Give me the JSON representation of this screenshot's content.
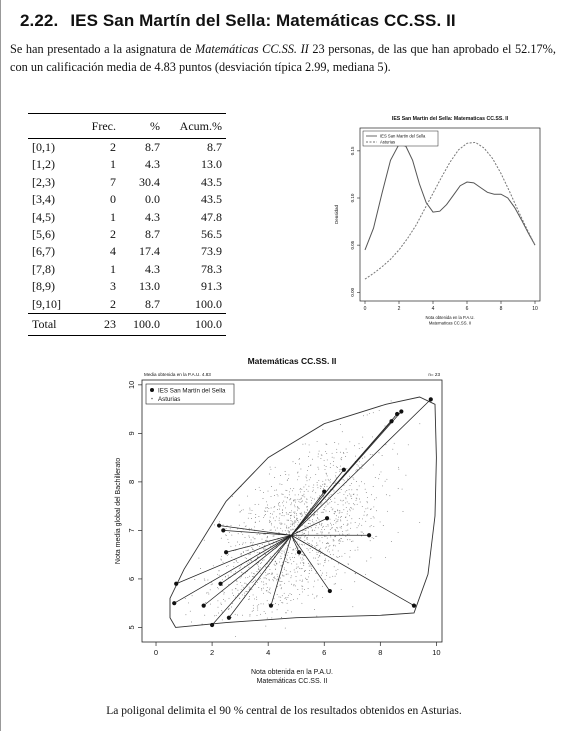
{
  "section": {
    "number": "2.22.",
    "title": "IES San Martín del Sella: Matemáticas CC.SS. II"
  },
  "intro": {
    "part1": "Se han presentado a la asignatura de ",
    "subject": "Matemáticas CC.SS. II",
    "part2": " 23 personas, de las que han aprobado el 52.17%, con un calificación media de 4.83 puntos (desviación típica 2.99, mediana 5)."
  },
  "table": {
    "headers": [
      "",
      "Frec.",
      "%",
      "Acum.%"
    ],
    "rows": [
      [
        "[0,1)",
        "2",
        "8.7",
        "8.7"
      ],
      [
        "[1,2)",
        "1",
        "4.3",
        "13.0"
      ],
      [
        "[2,3)",
        "7",
        "30.4",
        "43.5"
      ],
      [
        "[3,4)",
        "0",
        "0.0",
        "43.5"
      ],
      [
        "[4,5)",
        "1",
        "4.3",
        "47.8"
      ],
      [
        "[5,6)",
        "2",
        "8.7",
        "56.5"
      ],
      [
        "[6,7)",
        "4",
        "17.4",
        "73.9"
      ],
      [
        "[7,8)",
        "1",
        "4.3",
        "78.3"
      ],
      [
        "[8,9)",
        "3",
        "13.0",
        "91.3"
      ],
      [
        "[9,10]",
        "2",
        "8.7",
        "100.0"
      ]
    ],
    "total": [
      "Total",
      "23",
      "100.0",
      "100.0"
    ]
  },
  "chart_data": [
    {
      "type": "line",
      "title": "IES San Martin del Sella: Matematicas CC.SS. II",
      "xlabel": "Nota obtenida en la P.A.U.\nMatematicas CC.SS. II",
      "ylabel": "Densidad",
      "xlim": [
        0,
        10
      ],
      "ylim": [
        -0.005,
        0.17
      ],
      "x_ticks": [
        "0",
        "2",
        "4",
        "6",
        "8",
        "10"
      ],
      "y_ticks": [
        "0.00",
        "0.05",
        "0.10",
        "0.15"
      ],
      "y_tick_values": [
        0.0,
        0.05,
        0.1,
        0.15
      ],
      "legend": "top-left",
      "series": [
        {
          "name": "IES San Martin del Sella",
          "style": "solid",
          "x": [
            0,
            0.5,
            1,
            1.5,
            2,
            2.4,
            2.8,
            3.2,
            3.6,
            4,
            4.4,
            4.8,
            5.2,
            5.6,
            6,
            6.4,
            6.8,
            7.2,
            7.6,
            8,
            8.4,
            8.8,
            9.2,
            9.6,
            10
          ],
          "y": [
            0.045,
            0.068,
            0.105,
            0.14,
            0.157,
            0.155,
            0.14,
            0.115,
            0.095,
            0.085,
            0.086,
            0.093,
            0.103,
            0.113,
            0.117,
            0.116,
            0.111,
            0.106,
            0.104,
            0.104,
            0.1,
            0.09,
            0.077,
            0.063,
            0.05
          ]
        },
        {
          "name": "Asturias",
          "style": "dashed",
          "x": [
            0,
            0.5,
            1,
            1.5,
            2,
            2.5,
            3,
            3.5,
            4,
            4.5,
            5,
            5.5,
            6,
            6.5,
            7,
            7.5,
            8,
            8.5,
            9,
            9.5,
            10
          ],
          "y": [
            0.014,
            0.02,
            0.027,
            0.035,
            0.045,
            0.057,
            0.071,
            0.088,
            0.105,
            0.122,
            0.138,
            0.151,
            0.158,
            0.159,
            0.153,
            0.142,
            0.126,
            0.107,
            0.087,
            0.068,
            0.05
          ]
        }
      ]
    },
    {
      "type": "scatter",
      "title": "Matemáticas CC.SS. II",
      "subtitle_left": "Media obtenida en la P.A.U. 4.83",
      "subtitle_right": "n= 23",
      "xlabel": "Nota obtenida en la P.A.U.\nMatemáticas CC.SS. II",
      "ylabel": "Nota media global del Bachillerato",
      "xlim": [
        -0.5,
        10.2
      ],
      "ylim": [
        4.7,
        10.1
      ],
      "x_ticks": [
        "0",
        "2",
        "4",
        "6",
        "8",
        "10"
      ],
      "y_ticks": [
        "5",
        "6",
        "7",
        "8",
        "9",
        "10"
      ],
      "legend": "top-left",
      "series": [
        {
          "name": "IES San Martín del Sella",
          "marker": "filled-dot",
          "points": [
            [
              0.65,
              5.5
            ],
            [
              0.72,
              5.9
            ],
            [
              1.7,
              5.45
            ],
            [
              2.0,
              5.05
            ],
            [
              2.3,
              5.9
            ],
            [
              2.6,
              5.2
            ],
            [
              2.25,
              7.1
            ],
            [
              2.4,
              7.0
            ],
            [
              2.5,
              6.55
            ],
            [
              4.1,
              5.45
            ],
            [
              5.1,
              6.55
            ],
            [
              6.2,
              5.75
            ],
            [
              6.1,
              7.25
            ],
            [
              6.0,
              7.8
            ],
            [
              6.7,
              8.25
            ],
            [
              7.6,
              6.9
            ],
            [
              8.4,
              9.25
            ],
            [
              8.6,
              9.4
            ],
            [
              8.75,
              9.45
            ],
            [
              9.2,
              5.45
            ],
            [
              9.8,
              9.7
            ]
          ]
        },
        {
          "name": "Asturias",
          "marker": "small-dot",
          "points": "approximately 1500 small dots, concentrated in the central region"
        }
      ],
      "mean_point": [
        4.83,
        6.9
      ],
      "polygon_note": "Convex hull (90% region) of Asturias results",
      "polygon": [
        [
          0.7,
          5.0
        ],
        [
          2.5,
          5.1
        ],
        [
          5.0,
          5.2
        ],
        [
          8.0,
          5.25
        ],
        [
          9.2,
          5.3
        ],
        [
          9.7,
          6.1
        ],
        [
          9.95,
          7.3
        ],
        [
          10.0,
          8.5
        ],
        [
          9.95,
          9.6
        ],
        [
          9.4,
          9.75
        ],
        [
          8.2,
          9.6
        ],
        [
          6.0,
          9.2
        ],
        [
          4.0,
          8.5
        ],
        [
          2.5,
          7.6
        ],
        [
          1.0,
          6.2
        ],
        [
          0.5,
          5.6
        ],
        [
          0.5,
          5.2
        ]
      ]
    }
  ],
  "caption": "La poligonal delimita el 90 % central de los resultados obtenidos en Asturias."
}
